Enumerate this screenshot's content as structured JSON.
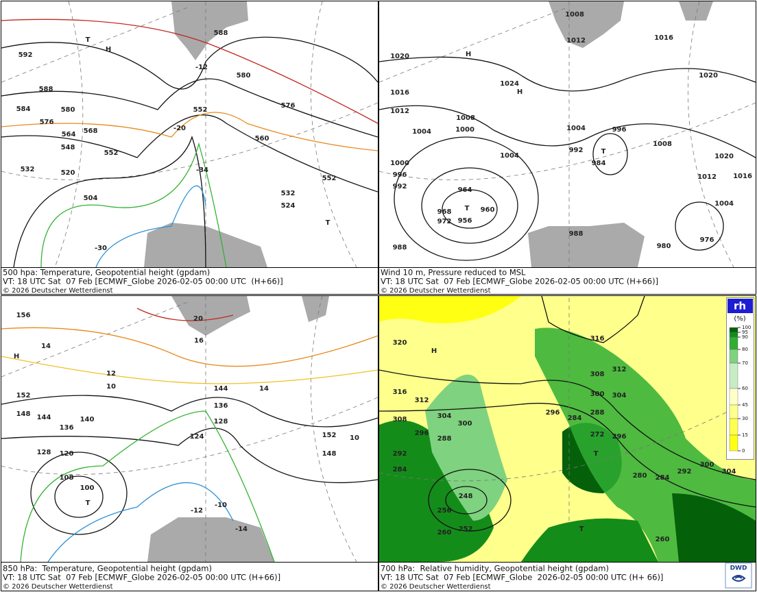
{
  "panels": [
    {
      "caption": [
        "500 hpa: Temperature, Geopotential height (gpdam)",
        "VT: 18 UTC Sat  07 Feb [ECMWF_Globe 2026-02-05 00:00 UTC  (H+66)]",
        "© 2026 Deutscher Wetterdienst"
      ],
      "labels": [
        "592",
        "588",
        "584",
        "580",
        "576",
        "568",
        "564",
        "552",
        "548",
        "532",
        "520",
        "504",
        "580",
        "576",
        "560",
        "552",
        "532",
        "524",
        "552",
        "588",
        "-12",
        "-20",
        "-30",
        "-34",
        "T",
        "H",
        "T"
      ]
    },
    {
      "caption": [
        "Wind 10 m, Pressure reduced to MSL",
        "VT: 18 UTC Sat  07 Feb [ECMWF_Globe 2026-02-05 00:00 UTC (H+66)]",
        "© 2026 Deutscher Wetterdienst"
      ],
      "labels": [
        "1020",
        "1016",
        "1012",
        "1004",
        "1000",
        "996",
        "992",
        "988",
        "1024",
        "1008",
        "1000",
        "1004",
        "964",
        "960",
        "956",
        "968",
        "972",
        "1004",
        "996",
        "992",
        "984",
        "1008",
        "1020",
        "1016",
        "1020",
        "1012",
        "1016",
        "1004",
        "976",
        "980",
        "988",
        "1008",
        "1012",
        "H",
        "H",
        "T",
        "T"
      ]
    },
    {
      "caption": [
        "850 hPa:  Temperature, Geopotential height (gpdam)",
        "VT: 18 UTC Sat  07 Feb [ECMWF_Globe 2026-02-05 00:00 UTC (H+66)]",
        "© 2026 Deutscher Wetterdienst"
      ],
      "labels": [
        "156",
        "152",
        "148",
        "144",
        "140",
        "136",
        "128",
        "120",
        "108",
        "100",
        "144",
        "136",
        "124",
        "128",
        "152",
        "148",
        "14",
        "12",
        "10",
        "16",
        "20",
        "10",
        "14",
        "-10",
        "-12",
        "-14",
        "H",
        "T"
      ]
    },
    {
      "caption": [
        "700 hPa:  Relative humidity, Geopotential height (gpdam)",
        "VT: 18 UTC Sat  07 Feb [ECMWF_Globe  2026-02-05 00:00 UTC (H+ 66)]",
        "© 2026 Deutscher Wetterdienst"
      ],
      "labels": [
        "320",
        "316",
        "312",
        "308",
        "304",
        "300",
        "296",
        "288",
        "292",
        "284",
        "316",
        "312",
        "308",
        "300",
        "304",
        "296",
        "284",
        "288",
        "272",
        "296",
        "292",
        "300",
        "304",
        "284",
        "280",
        "260",
        "248",
        "252",
        "256",
        "260",
        "H",
        "T",
        "T"
      ]
    }
  ],
  "legend": {
    "title": "rh",
    "unit": "(%)",
    "ticks": [
      100,
      95,
      90,
      80,
      70,
      60,
      45,
      30,
      15,
      0
    ],
    "colors": [
      "#05600a",
      "#148c1a",
      "#2fae33",
      "#7fd27f",
      "#c7ecc4",
      "#ffffc8",
      "#ffff8c",
      "#ffff50",
      "#ffff14"
    ]
  },
  "logo": "DWD"
}
